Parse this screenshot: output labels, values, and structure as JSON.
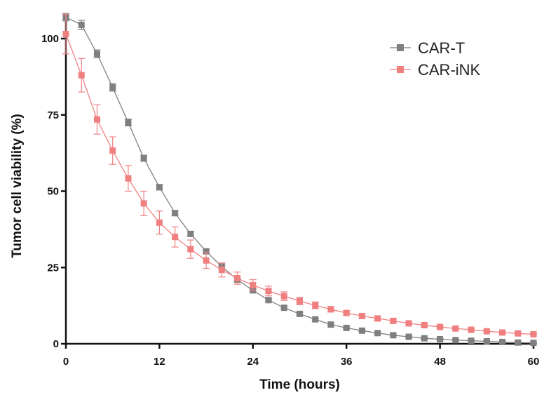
{
  "chart_data": {
    "type": "line",
    "title": "",
    "xlabel": "Time (hours)",
    "ylabel": "Tumor cell viability (%)",
    "xlim": [
      0,
      60
    ],
    "ylim": [
      0,
      100
    ],
    "xticks": [
      0,
      12,
      24,
      36,
      48,
      60
    ],
    "yticks": [
      0,
      25,
      50,
      75,
      100
    ],
    "x_tick_labels": [
      "0",
      "12",
      "24",
      "36",
      "48",
      "60"
    ],
    "y_tick_labels": [
      "0",
      "25",
      "50",
      "75",
      "100"
    ],
    "grid": false,
    "legend_position": "top-right",
    "x": [
      0,
      2,
      4,
      6,
      8,
      10,
      12,
      14,
      16,
      18,
      20,
      22,
      24,
      26,
      28,
      30,
      32,
      34,
      36,
      38,
      40,
      42,
      44,
      46,
      48,
      50,
      52,
      54,
      56,
      58,
      60
    ],
    "series": [
      {
        "name": "CAR-T",
        "color": "#7f7f7f",
        "marker": "square",
        "values": [
          107,
          104.5,
          95,
          84,
          72.5,
          60.8,
          51.3,
          42.8,
          36,
          30.3,
          25.3,
          21,
          17.5,
          14.3,
          11.8,
          9.8,
          8,
          6.3,
          5.2,
          4.3,
          3.5,
          2.8,
          2.3,
          1.8,
          1.5,
          1.2,
          1,
          0.8,
          0.6,
          0.4,
          0.3
        ],
        "errors": [
          1.2,
          1.5,
          1.3,
          1.2,
          1.1,
          1.0,
          0.9,
          0.8,
          0.7,
          0.6,
          0.5,
          0.5,
          0.5,
          0.4,
          0.4,
          0.4,
          0.3,
          0.3,
          0.3,
          0.3,
          0.2,
          0.2,
          0.2,
          0.2,
          0.2,
          0.2,
          0.2,
          0.2,
          0.2,
          0.2,
          0.2
        ]
      },
      {
        "name": "CAR-iNK",
        "color": "#f08080",
        "marker": "square",
        "values": [
          101.5,
          88,
          73.5,
          63.3,
          54.2,
          46,
          39.7,
          35,
          31,
          27.3,
          24.2,
          21.5,
          19.2,
          17.3,
          15.6,
          14,
          12.6,
          11.3,
          10.1,
          9.1,
          8.3,
          7.5,
          6.7,
          6.1,
          5.5,
          5,
          4.6,
          4.1,
          3.7,
          3.4,
          3.1
        ],
        "errors": [
          6.5,
          5.5,
          4.8,
          4.5,
          4.2,
          4.0,
          3.8,
          3.3,
          3.0,
          2.6,
          2.3,
          2.0,
          1.8,
          1.6,
          1.4,
          1.2,
          1.1,
          0.9,
          0.8,
          0.7,
          0.6,
          0.6,
          0.5,
          0.5,
          0.4,
          0.4,
          0.4,
          0.4,
          0.3,
          0.3,
          0.3
        ]
      }
    ]
  }
}
